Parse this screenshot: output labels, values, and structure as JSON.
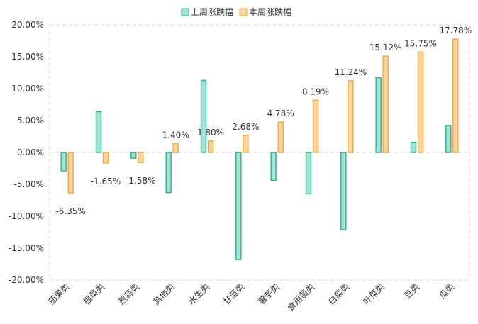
{
  "chart_data": {
    "type": "bar",
    "categories": [
      "茄果类",
      "根菜类",
      "葱蒜类",
      "其他类",
      "水生类",
      "甘蓝类",
      "薯芋类",
      "食用菌类",
      "白菜类",
      "叶菜类",
      "豆类",
      "瓜类"
    ],
    "series": [
      {
        "name": "上周涨跌幅",
        "values": [
          -2.9,
          6.4,
          -0.9,
          -6.3,
          11.3,
          -16.8,
          -4.4,
          -6.5,
          -12.1,
          11.7,
          1.6,
          4.2
        ],
        "color": "#a8e2d4",
        "stroke": "#2bb08e",
        "labels": [
          "",
          "",
          "",
          "",
          "",
          "",
          "",
          "",
          "",
          "",
          "",
          ""
        ]
      },
      {
        "name": "本周涨跌幅",
        "values": [
          -6.35,
          -1.65,
          -1.58,
          1.4,
          1.8,
          2.68,
          4.78,
          8.19,
          11.24,
          15.12,
          15.75,
          17.78
        ],
        "color": "#fcd5a1",
        "stroke": "#f2a93b",
        "labels": [
          "-6.35%",
          "-1.65%",
          "-1.58%",
          "1.40%",
          "1.80%",
          "2.68%",
          "4.78%",
          "8.19%",
          "11.24%",
          "15.12%",
          "15.75%",
          "17.78%"
        ]
      }
    ],
    "yticks": [
      "20.00%",
      "15.00%",
      "10.00%",
      "5.00%",
      "0.00%",
      "-5.00%",
      "-10.00%",
      "-15.00%",
      "-20.00%"
    ],
    "ylim": [
      -20,
      20
    ],
    "grid": "dashed",
    "legend": "top-center",
    "xlabel": "",
    "ylabel": ""
  }
}
